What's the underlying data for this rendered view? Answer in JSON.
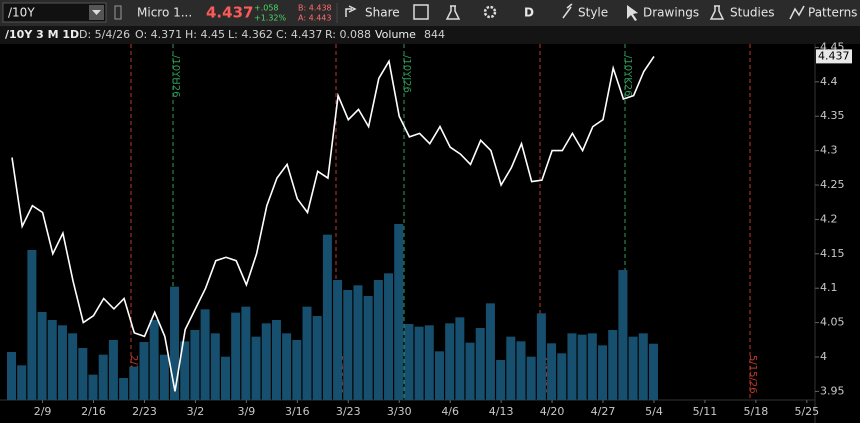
{
  "toolbar": {
    "symbol": "/10Y",
    "description": "Micro 1...",
    "last": "4.437",
    "change": "+.058",
    "change_pct": "+1.32%",
    "bid": "B: 4.438",
    "ask": "A: 4.443",
    "share": "Share",
    "aggregation": "D",
    "style": "Style",
    "drawings": "Drawings",
    "studies": "Studies",
    "patterns": "Patterns"
  },
  "info_bar": {
    "chart": "/10Y 3 M 1D",
    "date": "D: 5/4/26",
    "open": "O: 4.371",
    "high": "H: 4.45",
    "low": "L: 4.362",
    "close": "C: 4.437",
    "range": "R: 0.088",
    "volume": "844"
  },
  "chart_data": {
    "type": "line",
    "categories": [
      null,
      null,
      null,
      "2/9",
      null,
      null,
      null,
      null,
      "2/16",
      null,
      null,
      null,
      null,
      "2/23",
      null,
      null,
      null,
      null,
      "3/2",
      null,
      null,
      null,
      null,
      "3/9",
      null,
      null,
      null,
      null,
      "3/16",
      null,
      null,
      null,
      null,
      "3/23",
      null,
      null,
      null,
      null,
      "3/30",
      null,
      null,
      null,
      null,
      "4/6",
      null,
      null,
      null,
      null,
      "4/13",
      null,
      null,
      null,
      null,
      "4/20",
      null,
      null,
      null,
      null,
      "4/27",
      null,
      null,
      null,
      null,
      "5/4",
      null,
      null,
      null,
      null,
      "5/11",
      null,
      null,
      null,
      null,
      "5/18",
      null,
      null,
      null,
      null,
      "5/25"
    ],
    "series": [
      {
        "name": "/10Y",
        "color": "#ffffff",
        "values": [
          4.29,
          4.19,
          4.22,
          4.21,
          4.15,
          4.18,
          4.11,
          4.05,
          4.06,
          4.085,
          4.07,
          4.085,
          4.035,
          4.03,
          4.065,
          4.03,
          3.95,
          4.04,
          4.07,
          4.1,
          4.14,
          4.145,
          4.14,
          4.105,
          4.15,
          4.22,
          4.26,
          4.28,
          4.23,
          4.21,
          4.27,
          4.26,
          4.38,
          4.345,
          4.36,
          4.335,
          4.405,
          4.43,
          4.35,
          4.32,
          4.325,
          4.31,
          4.335,
          4.305,
          4.295,
          4.28,
          4.315,
          4.3,
          4.25,
          4.275,
          4.31,
          4.255,
          4.257,
          4.3,
          4.3,
          4.325,
          4.3,
          4.335,
          4.345,
          4.42,
          4.375,
          4.38,
          4.415,
          4.437,
          null,
          null,
          null,
          null,
          null,
          null,
          null,
          null,
          null,
          null,
          null,
          null,
          null,
          null,
          null
        ]
      },
      {
        "name": "Volume",
        "type": "bar",
        "color": "#17506e",
        "values": [
          720,
          520,
          2250,
          1320,
          1200,
          1120,
          1000,
          780,
          380,
          680,
          900,
          330,
          500,
          870,
          1200,
          680,
          1700,
          880,
          1050,
          1360,
          1000,
          650,
          1310,
          1400,
          950,
          1150,
          1200,
          1000,
          900,
          1400,
          1260,
          2480,
          1800,
          1650,
          1720,
          1560,
          1800,
          1900,
          2640,
          1140,
          1100,
          1120,
          730,
          1150,
          1240,
          860,
          1080,
          1450,
          600,
          950,
          880,
          650,
          1300,
          850,
          700,
          1000,
          980,
          1000,
          820,
          1050,
          1950,
          950,
          1000,
          844,
          null,
          null,
          null,
          null,
          null,
          null,
          null,
          null,
          null,
          null,
          null,
          null,
          null,
          null,
          null
        ]
      }
    ],
    "ylim": [
      3.9375,
      4.455
    ],
    "yticks": [
      3.95,
      4,
      4.05,
      4.1,
      4.15,
      4.2,
      4.25,
      4.3,
      4.35,
      4.4,
      4.45
    ],
    "annotations": [
      {
        "label": "2/20/26",
        "color": "#c0392b"
      },
      {
        "label": "/10YH26",
        "color": "#2e9e5a"
      },
      {
        "label": "3/20/26",
        "color": "#c0392b"
      },
      {
        "label": "/10YJ26",
        "color": "#2e9e5a"
      },
      {
        "label": "4/17/26",
        "color": "#c0392b"
      },
      {
        "label": "/10YK26",
        "color": "#2e9e5a"
      },
      {
        "label": "5/15/26",
        "color": "#c0392b"
      }
    ]
  }
}
